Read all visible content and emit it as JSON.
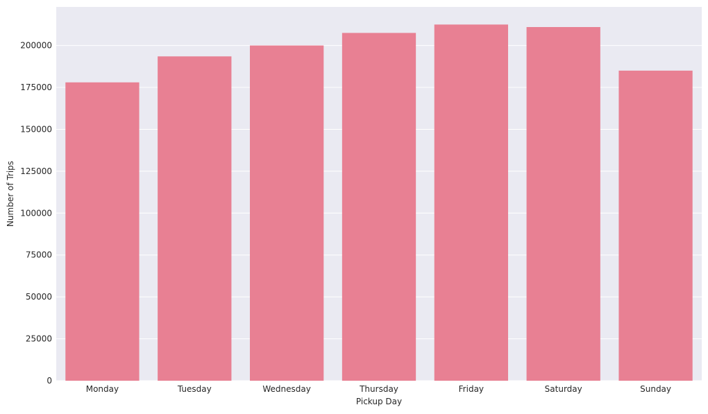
{
  "chart_data": {
    "type": "bar",
    "title": "",
    "xlabel": "Pickup Day",
    "ylabel": "Number of Trips",
    "categories": [
      "Monday",
      "Tuesday",
      "Wednesday",
      "Thursday",
      "Friday",
      "Saturday",
      "Sunday"
    ],
    "values": [
      178000,
      193500,
      200000,
      207500,
      212500,
      211000,
      185000
    ],
    "ylim": [
      0,
      223000
    ],
    "yticks": [
      0,
      25000,
      50000,
      75000,
      100000,
      125000,
      150000,
      175000,
      200000
    ],
    "ytick_labels": [
      "0",
      "25000",
      "50000",
      "75000",
      "100000",
      "125000",
      "150000",
      "175000",
      "200000"
    ],
    "grid": true,
    "grid_axis": "y",
    "legend": "none",
    "colors": {
      "bar": "#E88093",
      "plot_background": "#EAEAF2",
      "grid": "#FFFFFF",
      "text": "#262626"
    }
  }
}
